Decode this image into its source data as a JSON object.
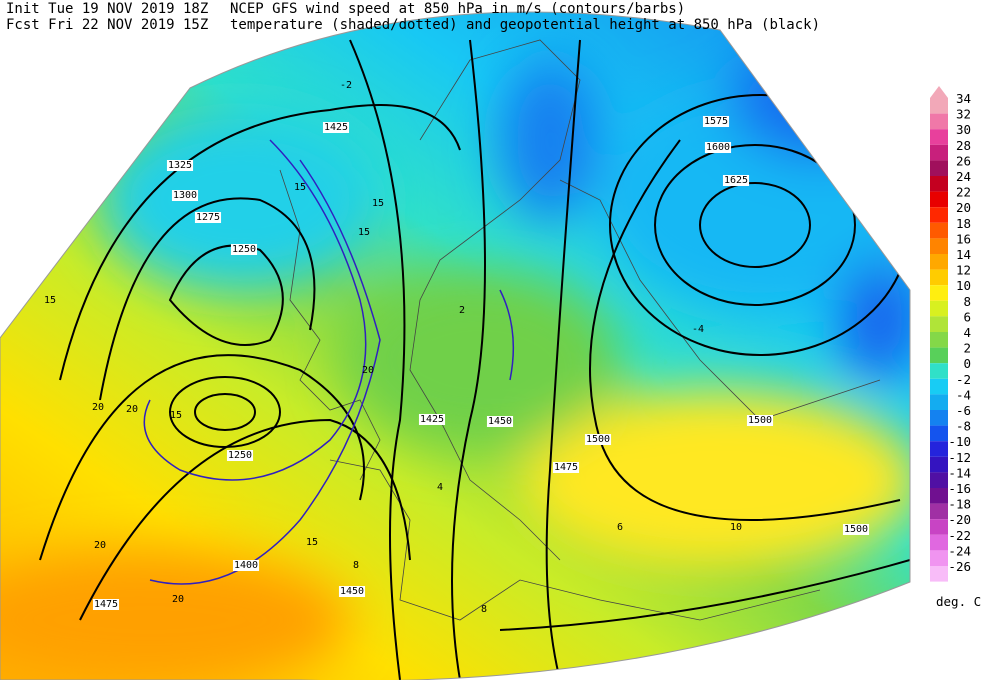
{
  "header": {
    "init": "Init  Tue 19 NOV 2019 18Z",
    "forecast": "Fcst Fri 22 NOV 2019 15Z",
    "title": "NCEP GFS wind speed at 850 hPa in m/s (contours/barbs)",
    "subtitle": "temperature (shaded/dotted) and geopotential height at 850 hPa (black)"
  },
  "legend": {
    "levels": [
      34,
      32,
      30,
      28,
      26,
      24,
      22,
      20,
      18,
      16,
      14,
      12,
      10,
      8,
      6,
      4,
      2,
      0,
      -2,
      -4,
      -6,
      -8,
      -10,
      -12,
      -14,
      -16,
      -18,
      -20,
      -22,
      -24,
      -26
    ],
    "colors": [
      "#f2a8b8",
      "#f078a8",
      "#e8409c",
      "#c8207c",
      "#a0105c",
      "#c40020",
      "#e80000",
      "#ff2800",
      "#ff5a00",
      "#ff8400",
      "#ffa800",
      "#ffcc00",
      "#ffee10",
      "#d8f020",
      "#b0e438",
      "#84d848",
      "#58d05a",
      "#30e0c8",
      "#18ccf4",
      "#14acf0",
      "#1482f0",
      "#1454ee",
      "#2424dc",
      "#3414c0",
      "#5010a4",
      "#701090",
      "#a030a4",
      "#c844c4",
      "#e068e0",
      "#f094f0",
      "#f8bcf8"
    ],
    "unit": "deg. C"
  },
  "map": {
    "height_labels": [
      "1325",
      "1300",
      "1275",
      "1250",
      "1425",
      "1575",
      "1600",
      "1625",
      "1425",
      "1450",
      "1475",
      "1500",
      "1500",
      "1500",
      "1450",
      "1475",
      "1400",
      "1250"
    ],
    "wind_labels": [
      "15",
      "15",
      "15",
      "20",
      "20",
      "20",
      "15",
      "20",
      "15",
      "15",
      "20"
    ],
    "temp_labels": [
      "-2",
      "2",
      "-4",
      "10",
      "8",
      "6",
      "4",
      "8"
    ]
  }
}
